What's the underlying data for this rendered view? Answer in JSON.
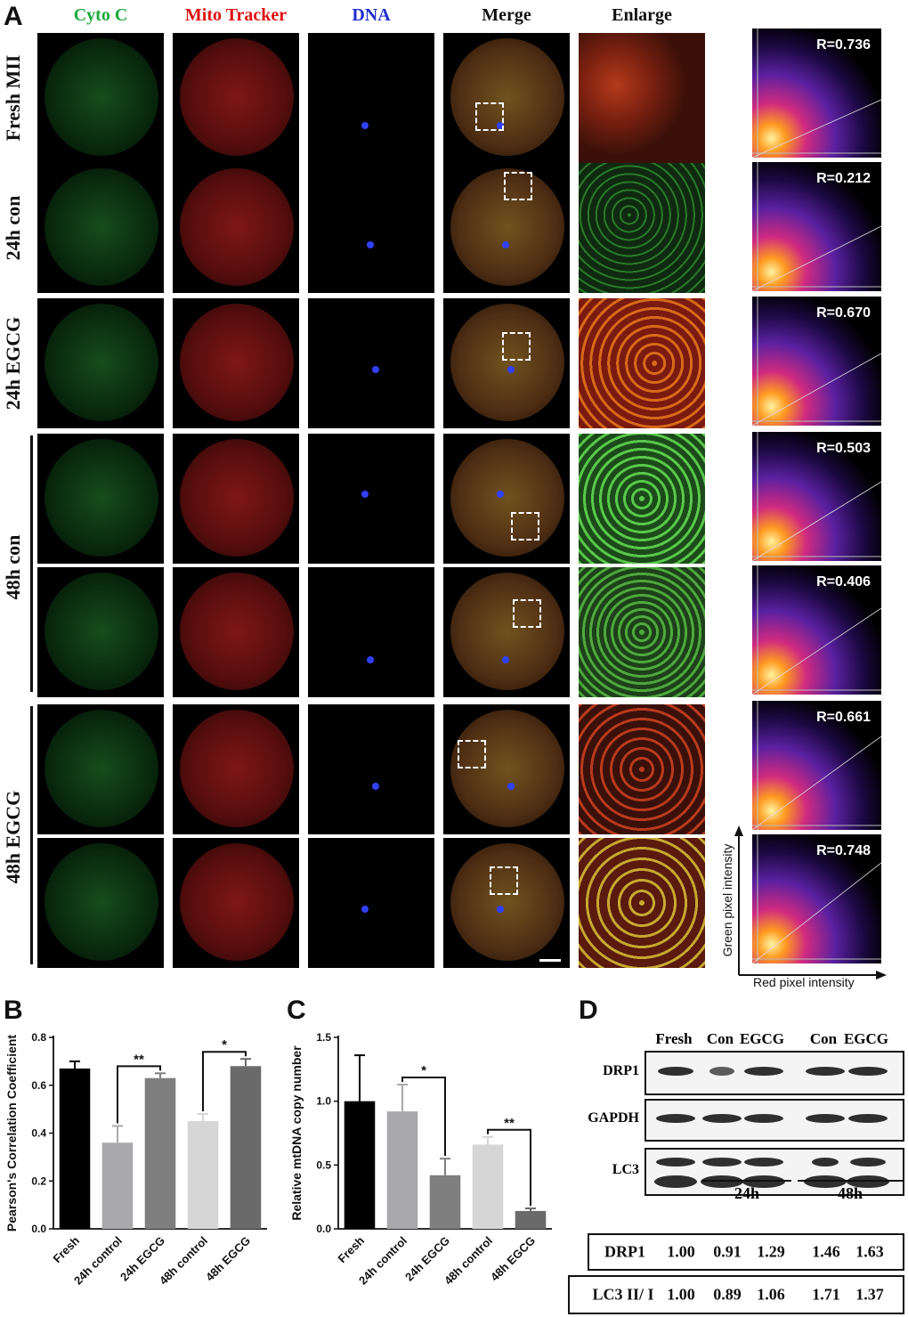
{
  "panelA": {
    "letter": "A",
    "columns": [
      {
        "label": "Cyto C",
        "color": "#1aaa3a"
      },
      {
        "label": "Mito Tracker",
        "color": "#e01010"
      },
      {
        "label": "DNA",
        "color": "#2030d0"
      },
      {
        "label": "Merge",
        "color": "#111111"
      },
      {
        "label": "Enlarge",
        "color": "#111111"
      }
    ],
    "row_labels": [
      "Fresh MII",
      "24h con",
      "24h EGCG",
      "48h con",
      "48h EGCG"
    ],
    "pearson_r": [
      "R=0.736",
      "R=0.212",
      "R=0.670",
      "R=0.503",
      "R=0.406",
      "R=0.661",
      "R=0.748"
    ],
    "scatter_axes": {
      "y": "Green pixel intensity",
      "x": "Red pixel intensity"
    }
  },
  "panelB": {
    "letter": "B",
    "chart_data": {
      "type": "bar",
      "categories": [
        "Fresh",
        "24h control",
        "24h EGCG",
        "48h control",
        "48h EGCG"
      ],
      "values": [
        0.67,
        0.36,
        0.63,
        0.45,
        0.68
      ],
      "errors": [
        0.03,
        0.07,
        0.02,
        0.03,
        0.03
      ],
      "ylabel": "Pearson's Correlation Coefficient",
      "ylim": [
        0,
        0.8
      ],
      "yticks": [
        "0.0",
        "0.2",
        "0.4",
        "0.6",
        "0.8"
      ],
      "colors": [
        "#000000",
        "#a9a9ad",
        "#7f7f7f",
        "#d6d6d6",
        "#6a6a6a"
      ],
      "significance": [
        {
          "between": [
            1,
            2
          ],
          "label": "**"
        },
        {
          "between": [
            3,
            4
          ],
          "label": "*"
        }
      ]
    }
  },
  "panelC": {
    "letter": "C",
    "chart_data": {
      "type": "bar",
      "categories": [
        "Fresh",
        "24h control",
        "24h EGCG",
        "48h control",
        "48h EGCG"
      ],
      "values": [
        1.0,
        0.92,
        0.42,
        0.66,
        0.14
      ],
      "errors": [
        0.36,
        0.21,
        0.13,
        0.06,
        0.02
      ],
      "ylabel": "Relative mtDNA copy number",
      "ylim": [
        0,
        1.5
      ],
      "yticks": [
        "0.0",
        "0.5",
        "1.0",
        "1.5"
      ],
      "colors": [
        "#000000",
        "#a9a9ad",
        "#7f7f7f",
        "#d6d6d6",
        "#6a6a6a"
      ],
      "significance": [
        {
          "between": [
            1,
            2
          ],
          "label": "*"
        },
        {
          "between": [
            3,
            4
          ],
          "label": "**"
        }
      ]
    }
  },
  "panelD": {
    "letter": "D",
    "lane_labels": [
      "Fresh",
      "Con",
      "EGCG",
      "Con",
      "EGCG"
    ],
    "blots": [
      "DRP1",
      "GAPDH",
      "LC3"
    ],
    "time_labels": [
      "24h",
      "48h"
    ],
    "table": [
      {
        "label": "DRP1",
        "values": [
          "1.00",
          "0.91",
          "1.29",
          "1.46",
          "1.63"
        ]
      },
      {
        "label": "LC3 II/ I",
        "values": [
          "1.00",
          "0.89",
          "1.06",
          "1.71",
          "1.37"
        ]
      }
    ]
  }
}
